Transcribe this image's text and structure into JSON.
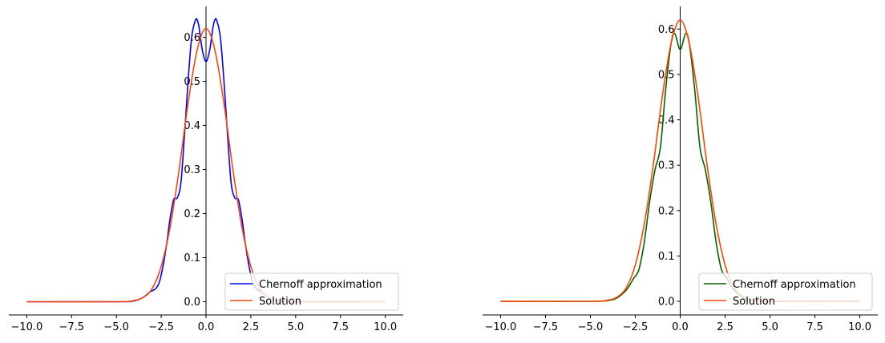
{
  "chart_data": [
    {
      "type": "line",
      "xlim": [
        -11,
        11
      ],
      "ylim": [
        -0.03,
        0.67
      ],
      "x_ticks": [
        -10.0,
        -7.5,
        -5.0,
        -2.5,
        0.0,
        2.5,
        5.0,
        7.5,
        10.0
      ],
      "x_tick_labels": [
        "−10.0",
        "−7.5",
        "−5.0",
        "−2.5",
        "0.0",
        "2.5",
        "5.0",
        "7.5",
        "10.0"
      ],
      "y_ticks": [
        0.0,
        0.1,
        0.2,
        0.3,
        0.4,
        0.5,
        0.6
      ],
      "y_tick_labels": [
        "0.0",
        "0.1",
        "0.2",
        "0.3",
        "0.4",
        "0.5",
        "0.6"
      ],
      "spines": "left-at-x0, bottom",
      "legend": {
        "placement": "lower-right"
      },
      "series": [
        {
          "name": "Chernoff approximation",
          "color": "#0000ff",
          "x": [
            -10,
            -5,
            -4,
            -3.5,
            -3.2,
            -3,
            -2.8,
            -2.6,
            -2.4,
            -2.2,
            -2.0,
            -1.8,
            -1.6,
            -1.4,
            -1.2,
            -1.0,
            -0.8,
            -0.6,
            -0.5,
            -0.4,
            -0.2,
            0,
            0.2,
            0.4,
            0.5,
            0.6,
            0.8,
            1.0,
            1.2,
            1.4,
            1.6,
            1.8,
            2.0,
            2.2,
            2.4,
            2.6,
            2.8,
            3.0,
            3.5,
            4,
            5,
            10
          ],
          "y": [
            0.0,
            0.0,
            0.002,
            0.01,
            0.02,
            0.025,
            0.03,
            0.045,
            0.08,
            0.13,
            0.19,
            0.232,
            0.236,
            0.27,
            0.38,
            0.5,
            0.6,
            0.638,
            0.64,
            0.625,
            0.57,
            0.545,
            0.57,
            0.625,
            0.64,
            0.638,
            0.6,
            0.5,
            0.38,
            0.27,
            0.236,
            0.232,
            0.19,
            0.13,
            0.08,
            0.045,
            0.03,
            0.025,
            0.01,
            0.002,
            0.0,
            0.0
          ]
        },
        {
          "name": "Solution",
          "color": "#ff4500",
          "x": [
            -10,
            -5,
            -4,
            -3.5,
            -3,
            -2.5,
            -2,
            -1.5,
            -1,
            -0.5,
            0,
            0.5,
            1,
            1.5,
            2,
            2.5,
            3,
            3.5,
            4,
            5,
            10
          ],
          "y": [
            0.0,
            0.0,
            0.003,
            0.01,
            0.03,
            0.08,
            0.17,
            0.3,
            0.45,
            0.57,
            0.62,
            0.57,
            0.45,
            0.3,
            0.17,
            0.08,
            0.03,
            0.01,
            0.003,
            0.0,
            0.0
          ]
        }
      ]
    },
    {
      "type": "line",
      "xlim": [
        -11,
        11
      ],
      "ylim": [
        -0.03,
        0.65
      ],
      "x_ticks": [
        -10.0,
        -7.5,
        -5.0,
        -2.5,
        0.0,
        2.5,
        5.0,
        7.5,
        10.0
      ],
      "x_tick_labels": [
        "−10.0",
        "−7.5",
        "−5.0",
        "−2.5",
        "0.0",
        "2.5",
        "5.0",
        "7.5",
        "10.0"
      ],
      "y_ticks": [
        0.0,
        0.1,
        0.2,
        0.3,
        0.4,
        0.5,
        0.6
      ],
      "y_tick_labels": [
        "0.0",
        "0.1",
        "0.2",
        "0.3",
        "0.4",
        "0.5",
        "0.6"
      ],
      "spines": "left-at-x0, bottom",
      "legend": {
        "placement": "lower-right"
      },
      "series": [
        {
          "name": "Chernoff approximation",
          "color": "#006400",
          "x": [
            -10,
            -5,
            -4,
            -3.5,
            -3,
            -2.6,
            -2.3,
            -2.0,
            -1.7,
            -1.4,
            -1.1,
            -0.8,
            -0.5,
            -0.3,
            0,
            0.3,
            0.5,
            0.8,
            1.1,
            1.4,
            1.7,
            2.0,
            2.3,
            2.6,
            3,
            3.5,
            4,
            5,
            10
          ],
          "y": [
            0.0,
            0.0,
            0.002,
            0.008,
            0.025,
            0.05,
            0.07,
            0.13,
            0.22,
            0.29,
            0.34,
            0.47,
            0.57,
            0.59,
            0.555,
            0.59,
            0.57,
            0.47,
            0.34,
            0.29,
            0.22,
            0.13,
            0.07,
            0.05,
            0.025,
            0.008,
            0.002,
            0.0,
            0.0
          ]
        },
        {
          "name": "Solution",
          "color": "#ff4500",
          "x": [
            -10,
            -5,
            -4,
            -3.5,
            -3,
            -2.5,
            -2,
            -1.5,
            -1,
            -0.5,
            0,
            0.5,
            1,
            1.5,
            2,
            2.5,
            3,
            3.5,
            4,
            5,
            10
          ],
          "y": [
            0.0,
            0.0,
            0.003,
            0.01,
            0.03,
            0.08,
            0.17,
            0.3,
            0.45,
            0.57,
            0.62,
            0.57,
            0.45,
            0.3,
            0.17,
            0.08,
            0.03,
            0.01,
            0.003,
            0.0,
            0.0
          ]
        }
      ]
    }
  ]
}
